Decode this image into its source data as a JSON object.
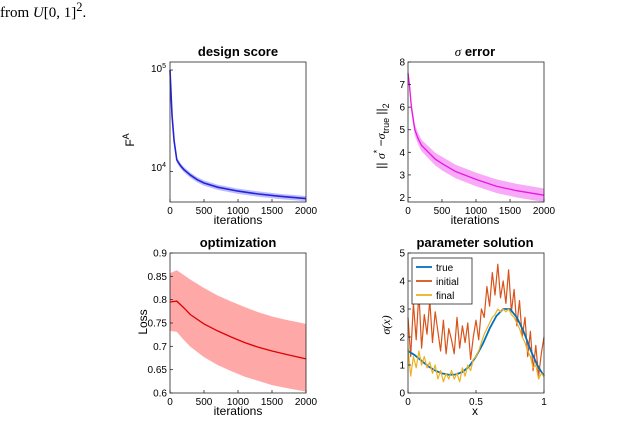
{
  "caption": {
    "prefix": "from ",
    "italic": "U",
    "suffix": "[0, 1]",
    "sup": "2",
    "end": "."
  },
  "chart_data": [
    {
      "type": "line",
      "title": "design score",
      "xlabel": "iterations",
      "ylabel": "F",
      "ylabel_sup": "A",
      "yscale": "log",
      "xlim": [
        0,
        2000
      ],
      "ylim": [
        5000,
        120000
      ],
      "xticks": [
        "0",
        "500",
        "1000",
        "1500",
        "2000"
      ],
      "yticks": [
        {
          "base": "10",
          "exp": "4",
          "value": 10000
        },
        {
          "base": "10",
          "exp": "5",
          "value": 100000
        }
      ],
      "color": "#2323d9",
      "band_color": "#8f8fff",
      "series": [
        {
          "x": [
            0,
            10,
            30,
            60,
            100,
            150,
            200,
            300,
            400,
            500,
            700,
            1000,
            1300,
            1600,
            2000
          ],
          "y": [
            100000,
            70000,
            36000,
            20000,
            13000,
            11500,
            10500,
            9200,
            8300,
            7700,
            7000,
            6400,
            6000,
            5700,
            5400
          ],
          "band": 0.06
        }
      ]
    },
    {
      "type": "line",
      "title": "σ error",
      "title_italic": "σ",
      "title_rest": " error",
      "xlabel": "iterations",
      "ylabel": "|| σ* − σtrue ||2",
      "xlim": [
        0,
        2000
      ],
      "ylim": [
        1.8,
        8
      ],
      "xticks": [
        "0",
        "500",
        "1000",
        "1500",
        "2000"
      ],
      "yticks": [
        "2",
        "3",
        "4",
        "5",
        "6",
        "7",
        "8"
      ],
      "color": "#e619e6",
      "band_color": "#f58cf5",
      "series": [
        {
          "x": [
            0,
            20,
            50,
            100,
            150,
            200,
            300,
            400,
            500,
            700,
            1000,
            1300,
            1600,
            2000
          ],
          "y": [
            7.5,
            7.0,
            6.0,
            5.0,
            4.6,
            4.3,
            4.0,
            3.7,
            3.5,
            3.15,
            2.8,
            2.5,
            2.3,
            2.1
          ],
          "band": [
            0.25,
            0.25,
            0.25,
            0.25,
            0.25,
            0.25,
            0.27,
            0.28,
            0.3,
            0.3,
            0.3,
            0.3,
            0.3,
            0.3
          ]
        }
      ]
    },
    {
      "type": "line",
      "title": "optimization",
      "xlabel": "iterations",
      "ylabel": "Loss",
      "xlim": [
        0,
        2000
      ],
      "ylim": [
        0.6,
        0.9
      ],
      "xticks": [
        "0",
        "500",
        "1000",
        "1500",
        "2000"
      ],
      "yticks": [
        "0.6",
        "0.65",
        "0.7",
        "0.75",
        "0.8",
        "0.85",
        "0.9"
      ],
      "color": "#e00000",
      "band_color": "#ff9999",
      "series": [
        {
          "x": [
            0,
            100,
            200,
            300,
            500,
            700,
            900,
            1100,
            1300,
            1500,
            1700,
            2000
          ],
          "y": [
            0.795,
            0.797,
            0.783,
            0.768,
            0.748,
            0.733,
            0.72,
            0.708,
            0.698,
            0.69,
            0.683,
            0.673
          ],
          "upper": [
            0.857,
            0.863,
            0.853,
            0.843,
            0.825,
            0.809,
            0.796,
            0.784,
            0.773,
            0.764,
            0.757,
            0.748
          ],
          "lower": [
            0.733,
            0.731,
            0.714,
            0.699,
            0.677,
            0.66,
            0.647,
            0.635,
            0.626,
            0.617,
            0.611,
            0.603
          ]
        }
      ]
    },
    {
      "type": "line",
      "title": "parameter solution",
      "xlabel": "x",
      "ylabel": "σ(x)",
      "xlim": [
        0,
        1
      ],
      "ylim": [
        0,
        5
      ],
      "xticks": [
        "0",
        "0.5",
        "1"
      ],
      "yticks": [
        "0",
        "1",
        "2",
        "3",
        "4",
        "5"
      ],
      "legend_position": "top-left",
      "series": [
        {
          "name": "true",
          "color": "#0072bd",
          "x": [
            0,
            0.05,
            0.1,
            0.15,
            0.2,
            0.25,
            0.3,
            0.35,
            0.4,
            0.45,
            0.5,
            0.55,
            0.6,
            0.65,
            0.7,
            0.75,
            0.8,
            0.85,
            0.9,
            0.95,
            1
          ],
          "y": [
            1.5,
            1.35,
            1.15,
            0.95,
            0.8,
            0.7,
            0.65,
            0.66,
            0.75,
            0.95,
            1.3,
            1.75,
            2.3,
            2.75,
            3.0,
            3.0,
            2.7,
            2.2,
            1.55,
            1.0,
            0.6
          ]
        },
        {
          "name": "initial",
          "color": "#d95319",
          "x": [
            0,
            0.02,
            0.04,
            0.06,
            0.08,
            0.1,
            0.12,
            0.14,
            0.16,
            0.18,
            0.2,
            0.22,
            0.24,
            0.26,
            0.28,
            0.3,
            0.32,
            0.34,
            0.36,
            0.38,
            0.4,
            0.42,
            0.44,
            0.46,
            0.48,
            0.5,
            0.52,
            0.54,
            0.56,
            0.58,
            0.6,
            0.62,
            0.64,
            0.66,
            0.68,
            0.7,
            0.72,
            0.74,
            0.76,
            0.78,
            0.8,
            0.82,
            0.84,
            0.86,
            0.88,
            0.9,
            0.92,
            0.94,
            0.96,
            0.98,
            1
          ],
          "y": [
            2.7,
            1.3,
            3.2,
            1.9,
            3.6,
            1.6,
            2.8,
            2.1,
            3.3,
            1.8,
            2.9,
            2.2,
            1.5,
            2.6,
            1.4,
            2.3,
            1.9,
            1.4,
            2.7,
            1.6,
            2.4,
            1.8,
            2.5,
            1.2,
            2.0,
            2.6,
            1.9,
            3.0,
            2.7,
            3.8,
            3.1,
            4.3,
            3.5,
            4.6,
            3.4,
            4.0,
            3.2,
            4.4,
            2.9,
            3.7,
            2.4,
            3.3,
            2.0,
            2.7,
            1.3,
            2.2,
            0.8,
            1.7,
            0.6,
            1.4,
            2.0
          ]
        },
        {
          "name": "final",
          "color": "#edb120",
          "x": [
            0,
            0.02,
            0.04,
            0.06,
            0.08,
            0.1,
            0.12,
            0.14,
            0.16,
            0.18,
            0.2,
            0.22,
            0.24,
            0.26,
            0.28,
            0.3,
            0.32,
            0.34,
            0.36,
            0.38,
            0.4,
            0.42,
            0.44,
            0.46,
            0.48,
            0.5,
            0.52,
            0.54,
            0.56,
            0.58,
            0.6,
            0.62,
            0.64,
            0.66,
            0.68,
            0.7,
            0.72,
            0.74,
            0.76,
            0.78,
            0.8,
            0.82,
            0.84,
            0.86,
            0.88,
            0.9,
            0.92,
            0.94,
            0.96,
            0.98,
            1
          ],
          "y": [
            1.6,
            0.6,
            1.3,
            0.9,
            1.5,
            1.0,
            1.3,
            0.9,
            1.1,
            0.7,
            1.0,
            0.5,
            0.8,
            0.4,
            0.7,
            0.5,
            0.8,
            0.5,
            0.7,
            0.4,
            0.9,
            0.6,
            1.0,
            0.8,
            1.2,
            1.3,
            1.5,
            1.8,
            2.1,
            2.3,
            2.5,
            2.7,
            2.8,
            3.0,
            2.9,
            3.0,
            2.9,
            3.0,
            2.8,
            2.7,
            2.5,
            2.3,
            2.0,
            1.8,
            1.5,
            1.3,
            0.9,
            1.0,
            0.5,
            0.7,
            0.6
          ]
        }
      ]
    }
  ]
}
